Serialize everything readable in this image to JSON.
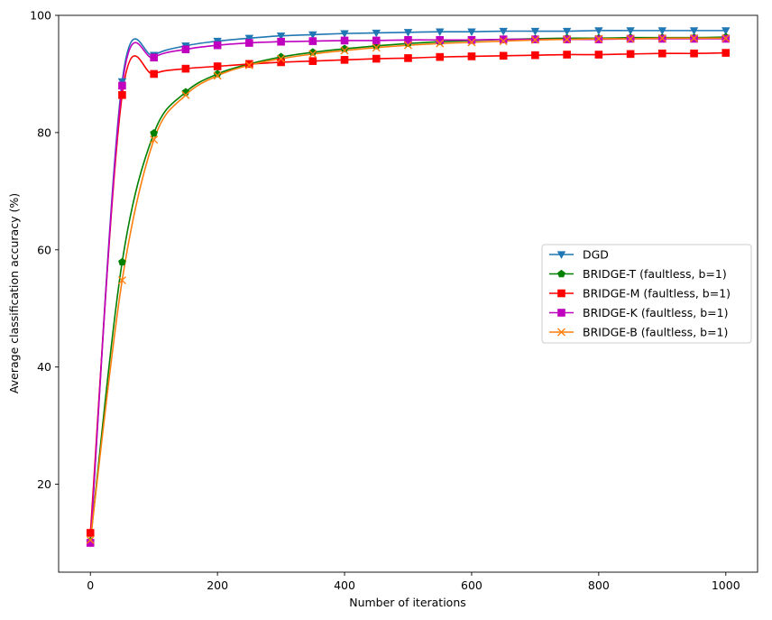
{
  "chart_data": {
    "type": "line",
    "title": "",
    "xlabel": "Number of iterations",
    "ylabel": "Average classification accuracy (%)",
    "xlim": [
      -50,
      1050
    ],
    "ylim": [
      5,
      100
    ],
    "xticks": [
      0,
      200,
      400,
      600,
      800,
      1000
    ],
    "yticks": [
      20,
      40,
      60,
      80,
      100
    ],
    "grid": false,
    "legend_position": "center-right",
    "x": [
      0,
      50,
      100,
      150,
      200,
      250,
      300,
      350,
      400,
      450,
      500,
      550,
      600,
      650,
      700,
      750,
      800,
      850,
      900,
      950,
      1000
    ],
    "series": [
      {
        "name": "DGD",
        "color": "#1f77b4",
        "marker": "triangle-down",
        "values": [
          10.0,
          88.7,
          93.2,
          94.8,
          95.6,
          96.1,
          96.5,
          96.7,
          96.9,
          97.0,
          97.1,
          97.2,
          97.2,
          97.3,
          97.3,
          97.3,
          97.4,
          97.4,
          97.4,
          97.4,
          97.4
        ]
      },
      {
        "name": "BRIDGE-T (faultless, b=1)",
        "color": "#008000",
        "marker": "pentagon",
        "values": [
          10.3,
          57.9,
          79.9,
          86.9,
          90.0,
          91.7,
          92.9,
          93.7,
          94.3,
          94.8,
          95.2,
          95.5,
          95.7,
          95.9,
          96.0,
          96.1,
          96.1,
          96.2,
          96.2,
          96.2,
          96.3
        ]
      },
      {
        "name": "BRIDGE-M (faultless, b=1)",
        "color": "#ff0000",
        "marker": "square",
        "values": [
          11.7,
          86.4,
          90.0,
          90.9,
          91.3,
          91.7,
          92.0,
          92.2,
          92.4,
          92.6,
          92.7,
          92.9,
          93.0,
          93.1,
          93.2,
          93.3,
          93.3,
          93.4,
          93.5,
          93.5,
          93.6
        ]
      },
      {
        "name": "BRIDGE-K (faultless, b=1)",
        "color": "#bf00bf",
        "marker": "square",
        "values": [
          10.0,
          88.0,
          92.8,
          94.2,
          94.9,
          95.3,
          95.5,
          95.6,
          95.7,
          95.7,
          95.8,
          95.8,
          95.8,
          95.9,
          95.9,
          95.9,
          95.9,
          96.0,
          96.0,
          96.0,
          96.0
        ]
      },
      {
        "name": "BRIDGE-B (faultless, b=1)",
        "color": "#ff7f0e",
        "marker": "x",
        "values": [
          10.5,
          54.8,
          78.8,
          86.4,
          89.7,
          91.5,
          92.6,
          93.4,
          94.0,
          94.5,
          94.9,
          95.2,
          95.4,
          95.6,
          95.8,
          95.9,
          96.0,
          96.0,
          96.1,
          96.1,
          96.1
        ]
      }
    ]
  }
}
